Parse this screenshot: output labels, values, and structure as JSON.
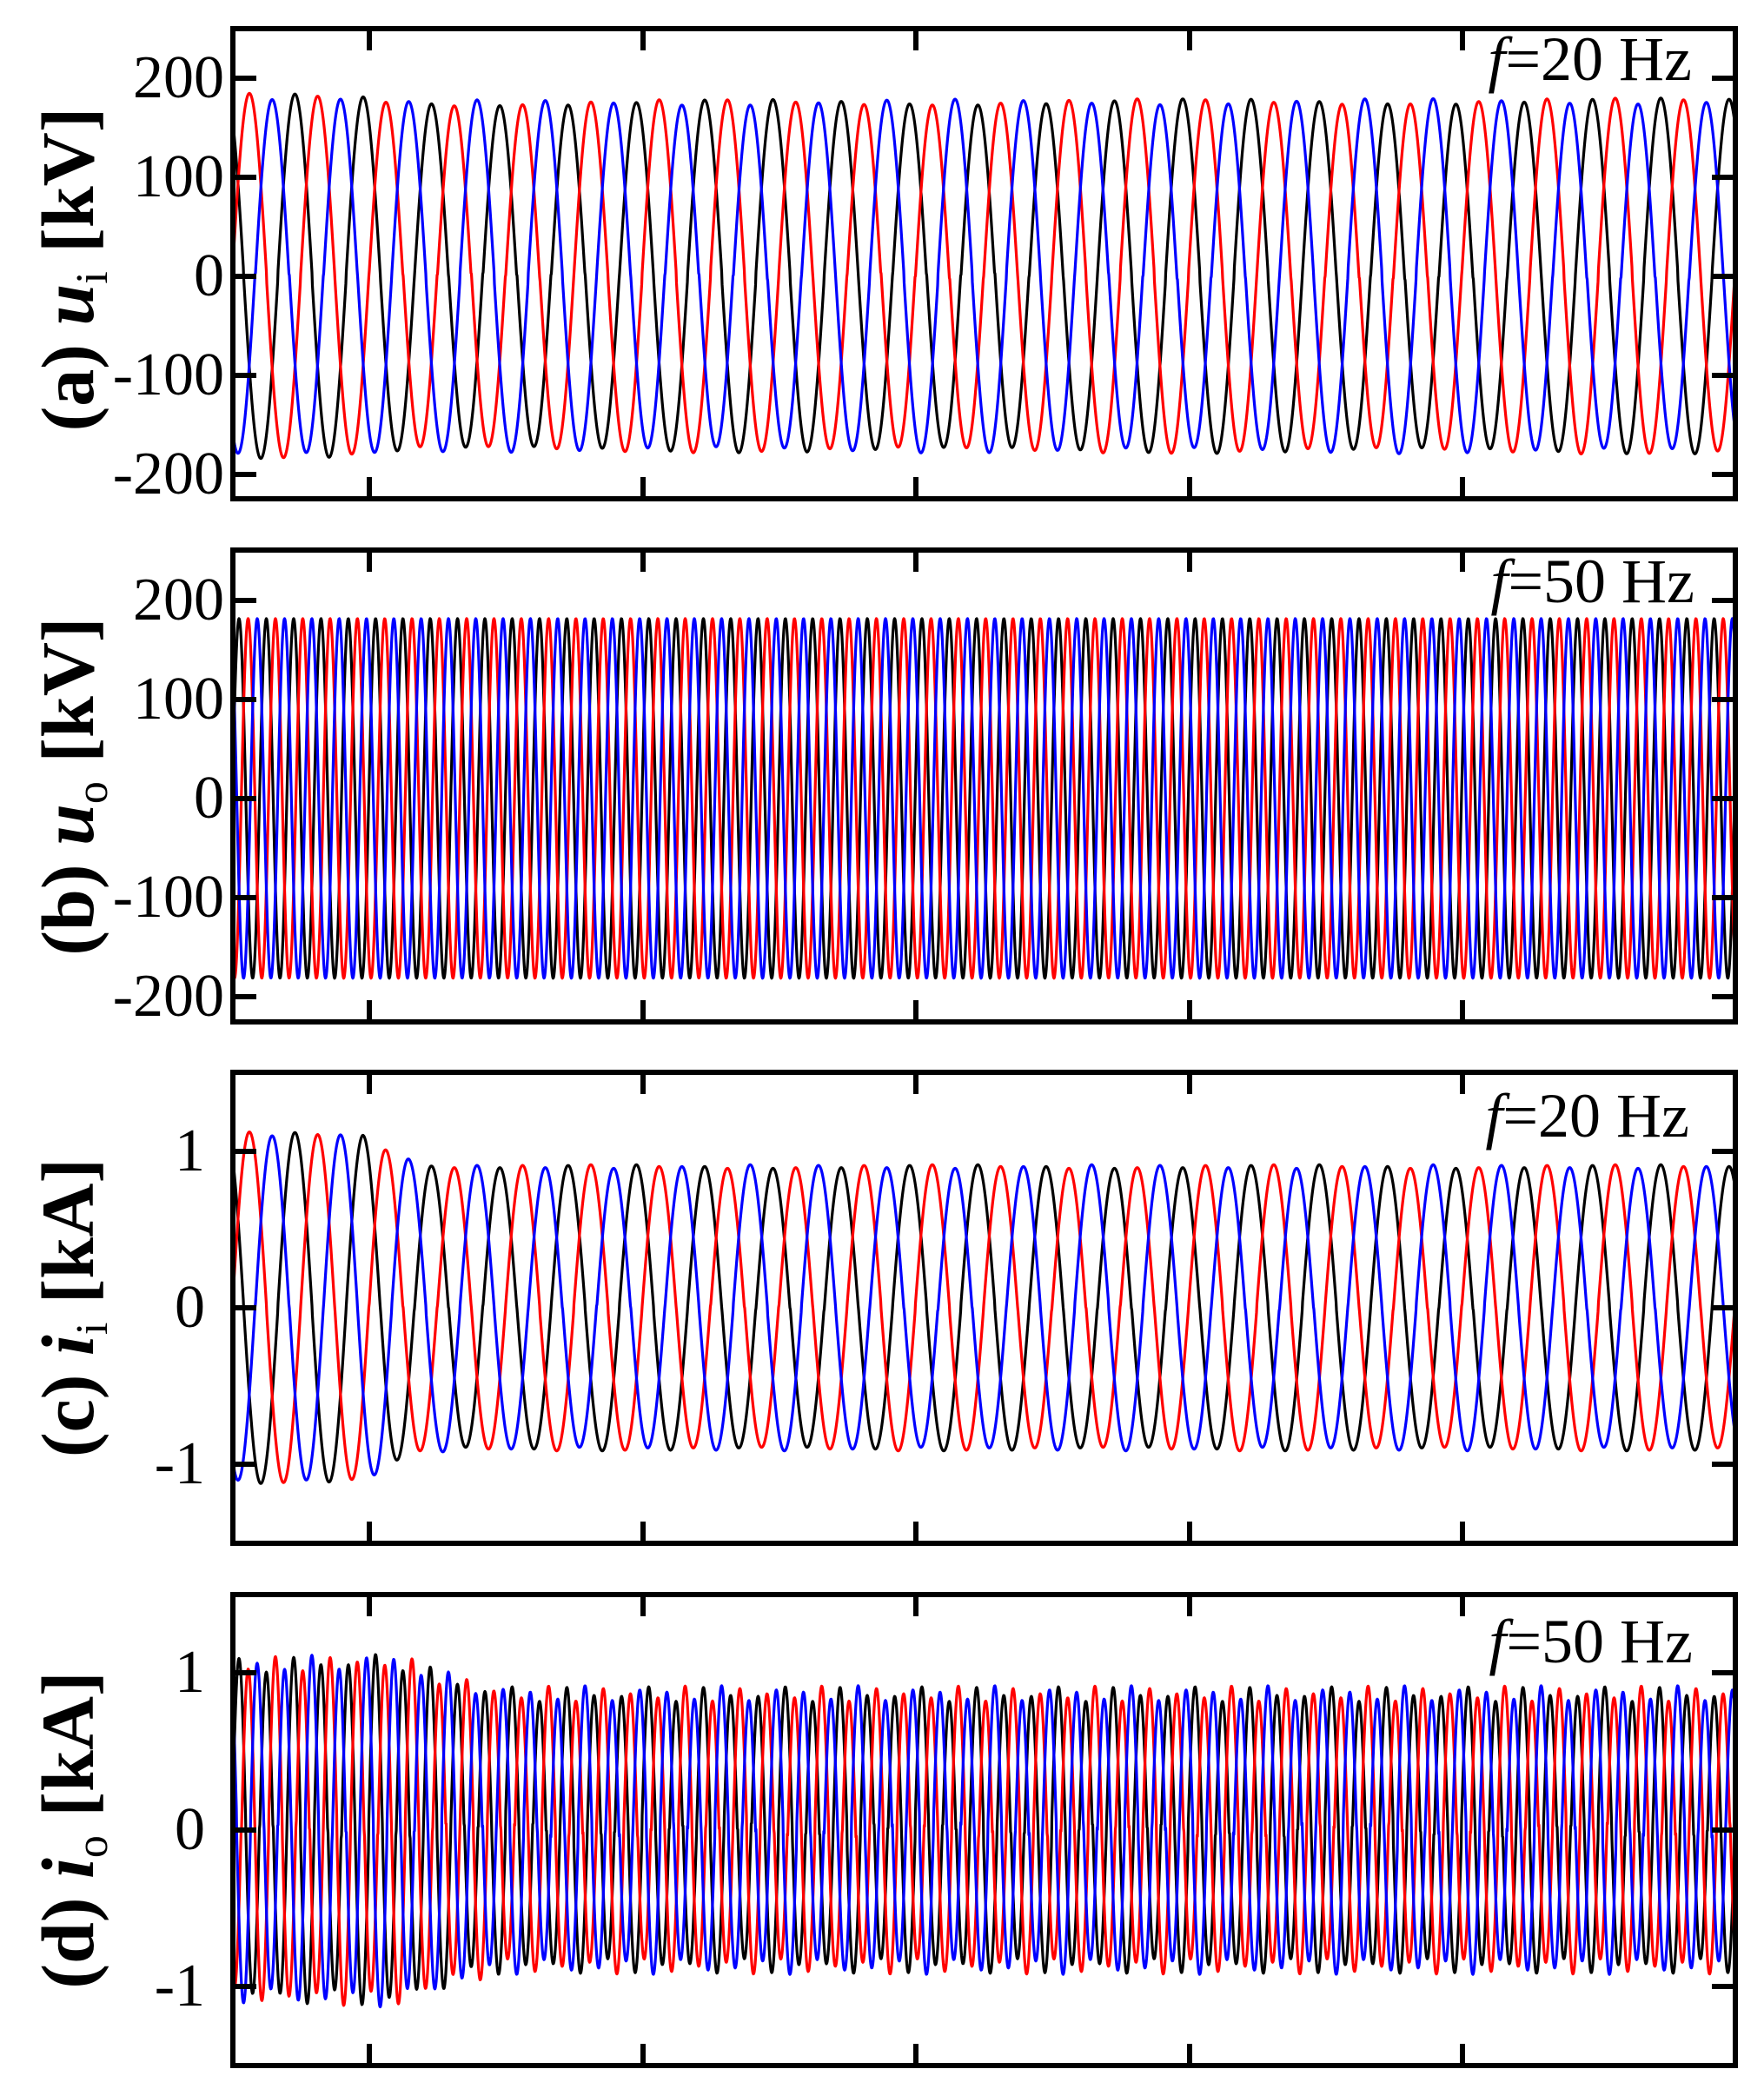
{
  "figure": {
    "panels": [
      {
        "id": "a",
        "ylabel": {
          "prefix": "(a) ",
          "symbol": "u",
          "subscript": "i",
          "unit": " [kV]"
        },
        "annotation": {
          "symbol": "f",
          "text": "=20 Hz"
        },
        "ytick_labels": [
          "200",
          "100",
          "0",
          "-100",
          "-200"
        ]
      },
      {
        "id": "b",
        "ylabel": {
          "prefix": "(b) ",
          "symbol": "u",
          "subscript": "o",
          "unit": " [kV]"
        },
        "annotation": {
          "symbol": "f",
          "text": "=50 Hz"
        },
        "ytick_labels": [
          "200",
          "100",
          "0",
          "-100",
          "-200"
        ]
      },
      {
        "id": "c",
        "ylabel": {
          "prefix": "(c) ",
          "symbol": "i",
          "subscript": "i",
          "unit": " [kA]"
        },
        "annotation": {
          "symbol": "f",
          "text": "=20 Hz"
        },
        "ytick_labels": [
          "1",
          "0",
          "-1"
        ]
      },
      {
        "id": "d",
        "ylabel": {
          "prefix": "(d) ",
          "symbol": "i",
          "subscript": "o",
          "unit": " [kA]"
        },
        "annotation": {
          "symbol": "f",
          "text": "=50 Hz"
        },
        "ytick_labels": [
          "1",
          "0",
          "-1"
        ]
      }
    ]
  },
  "chart_data": [
    {
      "type": "line",
      "title": "",
      "panel": "(a)",
      "ylabel": "u_i [kV]",
      "xlabel": "",
      "annotation": "f=20 Hz",
      "ylim": [
        -225,
        250
      ],
      "yticks": [
        200,
        100,
        0,
        -100,
        -200
      ],
      "x_range_s": [
        0,
        1.1
      ],
      "xticks_s": [
        0.1,
        0.3,
        0.5,
        0.7,
        0.9
      ],
      "xtick_labels": [],
      "grid": false,
      "legend": null,
      "frequency_hz": 20,
      "series": [
        {
          "name": "phase-red",
          "color": "#ff0000",
          "phase_deg": 0
        },
        {
          "name": "phase-blue",
          "color": "#0000ff",
          "phase_deg": -120
        },
        {
          "name": "phase-black",
          "color": "#000000",
          "phase_deg": -240
        }
      ],
      "reference_peak_time_s": 0.0121,
      "amplitude_envelope": [
        [
          0,
          182
        ],
        [
          0.09,
          180
        ],
        [
          0.13,
          175
        ],
        [
          0.6,
          176
        ],
        [
          1.1,
          177
        ]
      ],
      "ripple": {
        "amplitude": 3,
        "frequency_hz": 3
      },
      "peak_initial": 182,
      "peak_steady": 176
    },
    {
      "type": "line",
      "title": "",
      "panel": "(b)",
      "ylabel": "u_o [kV]",
      "xlabel": "",
      "annotation": "f=50 Hz",
      "ylim": [
        -225,
        250
      ],
      "yticks": [
        200,
        100,
        0,
        -100,
        -200
      ],
      "x_range_s": [
        0,
        1.1
      ],
      "xticks_s": [
        0.1,
        0.3,
        0.5,
        0.7,
        0.9
      ],
      "xtick_labels": [],
      "grid": false,
      "legend": null,
      "frequency_hz": 50,
      "series": [
        {
          "name": "phase-black",
          "color": "#000000",
          "phase_deg": 0
        },
        {
          "name": "phase-red",
          "color": "#ff0000",
          "phase_deg": -120
        },
        {
          "name": "phase-blue",
          "color": "#0000ff",
          "phase_deg": -240
        }
      ],
      "reference_peak_time_s": 0.0045,
      "amplitude_envelope": [
        [
          0,
          181
        ],
        [
          1.1,
          181
        ]
      ],
      "ripple": {
        "amplitude": 0,
        "frequency_hz": 0
      },
      "peak_initial": 181,
      "peak_steady": 181
    },
    {
      "type": "line",
      "title": "",
      "panel": "(c)",
      "ylabel": "i_i [kA]",
      "xlabel": "",
      "annotation": "f=20 Hz",
      "ylim": [
        -1.5,
        1.5
      ],
      "yticks": [
        1,
        0,
        -1
      ],
      "x_range_s": [
        0,
        1.1
      ],
      "xticks_s": [
        0.1,
        0.3,
        0.5,
        0.7,
        0.9
      ],
      "xtick_labels": [],
      "grid": false,
      "legend": null,
      "frequency_hz": 20,
      "series": [
        {
          "name": "phase-red",
          "color": "#ff0000",
          "phase_deg": 0
        },
        {
          "name": "phase-blue",
          "color": "#0000ff",
          "phase_deg": -120
        },
        {
          "name": "phase-black",
          "color": "#000000",
          "phase_deg": -240
        }
      ],
      "reference_peak_time_s": 0.0121,
      "amplitude_envelope": [
        [
          0,
          1.11
        ],
        [
          0.095,
          1.1
        ],
        [
          0.13,
          0.93
        ],
        [
          0.16,
          0.9
        ],
        [
          1.1,
          0.9
        ]
      ],
      "ripple": {
        "amplitude": 0.012,
        "frequency_hz": 4
      },
      "peak_initial": 1.11,
      "peak_steady": 0.9
    },
    {
      "type": "line",
      "title": "",
      "panel": "(d)",
      "ylabel": "i_o [kA]",
      "xlabel": "",
      "annotation": "f=50 Hz",
      "ylim": [
        -1.5,
        1.5
      ],
      "yticks": [
        1,
        0,
        -1
      ],
      "x_range_s": [
        0,
        1.1
      ],
      "xticks_s": [
        0.1,
        0.3,
        0.5,
        0.7,
        0.9
      ],
      "xtick_labels": [],
      "grid": false,
      "legend": null,
      "frequency_hz": 50,
      "series": [
        {
          "name": "phase-black",
          "color": "#000000",
          "phase_deg": 0
        },
        {
          "name": "phase-red",
          "color": "#ff0000",
          "phase_deg": -120
        },
        {
          "name": "phase-blue",
          "color": "#0000ff",
          "phase_deg": -240
        }
      ],
      "reference_peak_time_s": 0.0045,
      "amplitude_envelope": [
        [
          0,
          1.05
        ],
        [
          0.12,
          1.08
        ],
        [
          0.16,
          0.95
        ],
        [
          0.2,
          0.87
        ],
        [
          1.1,
          0.87
        ]
      ],
      "ripple": {
        "amplitude": 0.05,
        "frequency_hz": 20
      },
      "peak_initial": 1.1,
      "peak_steady": 0.88
    }
  ]
}
